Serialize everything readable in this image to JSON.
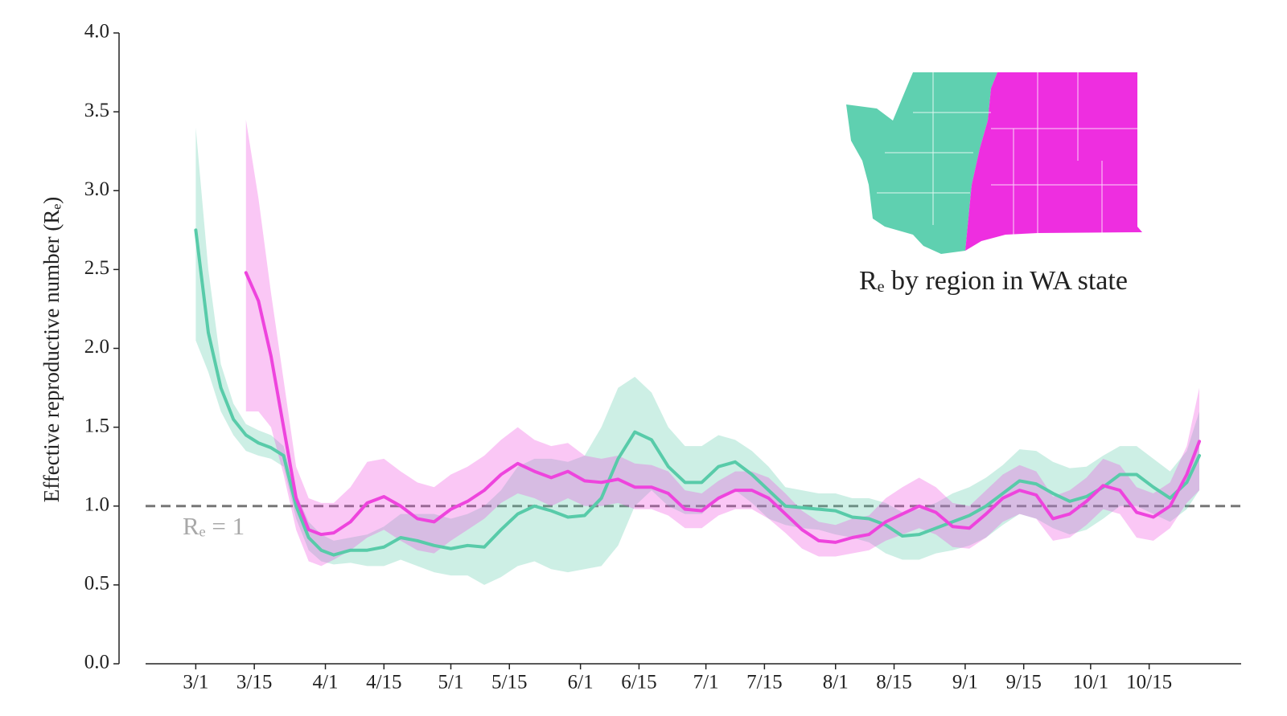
{
  "chart_data": {
    "type": "line",
    "y_label": "Effective reproductive number (Rₑ)",
    "annotation": "Rₑ by region in WA state",
    "reference": {
      "value": 1,
      "label": "Rₑ = 1"
    },
    "xlim": [
      "2/18",
      "11/6"
    ],
    "ylim": [
      0,
      4
    ],
    "xticks": [
      "3/1",
      "3/15",
      "4/1",
      "4/15",
      "5/1",
      "5/15",
      "6/1",
      "6/15",
      "7/1",
      "7/15",
      "8/1",
      "8/15",
      "9/1",
      "9/15",
      "10/1",
      "10/15"
    ],
    "yticks": [
      {
        "value": 0,
        "label": "0.0"
      },
      0.5,
      {
        "value": 1,
        "label": "1.0"
      },
      1.5,
      {
        "value": 2,
        "label": "2.0"
      },
      2.5,
      {
        "value": 3,
        "label": "3.0"
      },
      3.5,
      {
        "value": 4,
        "label": "4.0"
      }
    ],
    "x": [
      "3/1",
      "3/4",
      "3/7",
      "3/10",
      "3/13",
      "3/16",
      "3/19",
      "3/22",
      "3/25",
      "3/28",
      "3/31",
      "4/3",
      "4/7",
      "4/11",
      "4/15",
      "4/19",
      "4/23",
      "4/27",
      "5/1",
      "5/5",
      "5/9",
      "5/13",
      "5/17",
      "5/21",
      "5/25",
      "5/29",
      "6/2",
      "6/6",
      "6/10",
      "6/14",
      "6/18",
      "6/22",
      "6/26",
      "6/30",
      "7/4",
      "7/8",
      "7/12",
      "7/16",
      "7/20",
      "7/24",
      "7/28",
      "8/1",
      "8/5",
      "8/9",
      "8/13",
      "8/17",
      "8/21",
      "8/25",
      "8/29",
      "9/2",
      "9/6",
      "9/10",
      "9/14",
      "9/18",
      "9/22",
      "9/26",
      "9/30",
      "10/4",
      "10/8",
      "10/12",
      "10/16",
      "10/20",
      "10/24",
      "10/27"
    ],
    "series": [
      {
        "color": "#58cba9",
        "values": [
          2.75,
          2.1,
          1.75,
          1.55,
          1.45,
          1.4,
          1.37,
          1.32,
          1.0,
          0.8,
          0.72,
          0.69,
          0.72,
          0.72,
          0.74,
          0.8,
          0.78,
          0.75,
          0.73,
          0.75,
          0.74,
          0.85,
          0.95,
          1.0,
          0.97,
          0.93,
          0.94,
          1.05,
          1.3,
          1.47,
          1.42,
          1.25,
          1.15,
          1.15,
          1.25,
          1.28,
          1.2,
          1.1,
          1.0,
          0.99,
          0.98,
          0.97,
          0.93,
          0.92,
          0.88,
          0.81,
          0.82,
          0.86,
          0.9,
          0.94,
          1.0,
          1.08,
          1.16,
          1.14,
          1.08,
          1.03,
          1.06,
          1.12,
          1.2,
          1.2,
          1.12,
          1.05,
          1.15,
          1.32
        ],
        "lower": [
          2.05,
          1.85,
          1.6,
          1.45,
          1.35,
          1.32,
          1.3,
          1.25,
          0.92,
          0.72,
          0.65,
          0.63,
          0.64,
          0.62,
          0.62,
          0.66,
          0.62,
          0.58,
          0.56,
          0.56,
          0.5,
          0.55,
          0.62,
          0.65,
          0.6,
          0.58,
          0.6,
          0.62,
          0.75,
          1.0,
          1.1,
          1.0,
          0.95,
          0.95,
          1.05,
          1.1,
          1.02,
          0.92,
          0.88,
          0.86,
          0.85,
          0.82,
          0.8,
          0.77,
          0.7,
          0.66,
          0.66,
          0.7,
          0.72,
          0.75,
          0.8,
          0.88,
          0.95,
          0.92,
          0.86,
          0.82,
          0.85,
          0.92,
          1.0,
          1.0,
          0.95,
          0.9,
          0.98,
          1.1
        ],
        "upper": [
          3.4,
          2.5,
          1.9,
          1.65,
          1.52,
          1.48,
          1.45,
          1.38,
          1.08,
          0.9,
          0.82,
          0.78,
          0.8,
          0.82,
          0.87,
          0.95,
          0.95,
          0.95,
          0.92,
          0.95,
          1.0,
          1.1,
          1.25,
          1.3,
          1.3,
          1.28,
          1.32,
          1.5,
          1.75,
          1.82,
          1.72,
          1.5,
          1.38,
          1.38,
          1.45,
          1.42,
          1.35,
          1.25,
          1.12,
          1.1,
          1.08,
          1.08,
          1.05,
          1.05,
          1.02,
          0.96,
          0.98,
          1.02,
          1.08,
          1.12,
          1.18,
          1.26,
          1.36,
          1.35,
          1.28,
          1.24,
          1.25,
          1.32,
          1.38,
          1.38,
          1.3,
          1.22,
          1.35,
          1.6
        ]
      },
      {
        "color": "#ee44dd",
        "values": [
          null,
          null,
          null,
          null,
          2.48,
          2.3,
          1.95,
          1.5,
          1.05,
          0.85,
          0.82,
          0.83,
          0.9,
          1.02,
          1.06,
          1.0,
          0.92,
          0.9,
          0.98,
          1.03,
          1.1,
          1.2,
          1.27,
          1.22,
          1.18,
          1.22,
          1.16,
          1.15,
          1.17,
          1.12,
          1.12,
          1.08,
          0.98,
          0.97,
          1.05,
          1.1,
          1.1,
          1.05,
          0.95,
          0.85,
          0.78,
          0.77,
          0.8,
          0.82,
          0.9,
          0.95,
          1.0,
          0.96,
          0.87,
          0.86,
          0.95,
          1.05,
          1.1,
          1.07,
          0.92,
          0.95,
          1.03,
          1.13,
          1.1,
          0.96,
          0.93,
          1.0,
          1.2,
          1.41
        ],
        "lower": [
          null,
          null,
          null,
          null,
          1.6,
          1.6,
          1.5,
          1.2,
          0.85,
          0.65,
          0.62,
          0.66,
          0.72,
          0.8,
          0.85,
          0.78,
          0.72,
          0.7,
          0.78,
          0.85,
          0.92,
          1.02,
          1.08,
          1.05,
          1.0,
          1.05,
          1.0,
          1.0,
          1.02,
          0.98,
          0.98,
          0.94,
          0.86,
          0.86,
          0.94,
          0.98,
          0.98,
          0.92,
          0.83,
          0.73,
          0.68,
          0.68,
          0.7,
          0.72,
          0.78,
          0.82,
          0.86,
          0.82,
          0.74,
          0.73,
          0.8,
          0.9,
          0.95,
          0.92,
          0.78,
          0.8,
          0.88,
          0.98,
          0.95,
          0.8,
          0.78,
          0.86,
          1.02,
          1.1
        ],
        "upper": [
          null,
          null,
          null,
          null,
          3.45,
          2.95,
          2.35,
          1.8,
          1.25,
          1.05,
          1.02,
          1.02,
          1.12,
          1.28,
          1.3,
          1.22,
          1.15,
          1.12,
          1.2,
          1.25,
          1.32,
          1.42,
          1.5,
          1.42,
          1.38,
          1.4,
          1.32,
          1.3,
          1.32,
          1.27,
          1.26,
          1.22,
          1.1,
          1.08,
          1.16,
          1.22,
          1.22,
          1.18,
          1.08,
          0.97,
          0.9,
          0.88,
          0.92,
          0.94,
          1.05,
          1.12,
          1.18,
          1.12,
          1.02,
          1.0,
          1.1,
          1.2,
          1.26,
          1.22,
          1.06,
          1.1,
          1.18,
          1.3,
          1.26,
          1.12,
          1.08,
          1.15,
          1.38,
          1.75
        ]
      }
    ]
  }
}
